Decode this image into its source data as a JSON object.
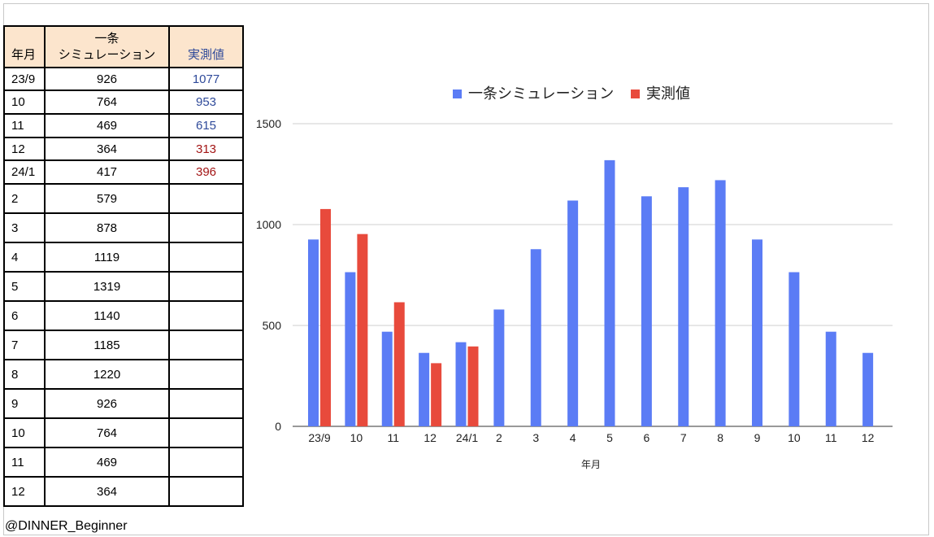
{
  "table": {
    "headers": {
      "month": "年月",
      "sim_line1": "一条",
      "sim_line2": "シミュレーション",
      "actual": "実測値"
    },
    "rows": [
      {
        "month": "23/9",
        "sim": "926",
        "actual": "1077",
        "actual_color": "#2f4a9a"
      },
      {
        "month": "10",
        "sim": "764",
        "actual": "953",
        "actual_color": "#2f4a9a"
      },
      {
        "month": "11",
        "sim": "469",
        "actual": "615",
        "actual_color": "#2f4a9a"
      },
      {
        "month": "12",
        "sim": "364",
        "actual": "313",
        "actual_color": "#a31515"
      },
      {
        "month": "24/1",
        "sim": "417",
        "actual": "396",
        "actual_color": "#a31515"
      },
      {
        "month": "2",
        "sim": "579",
        "actual": ""
      },
      {
        "month": "3",
        "sim": "878",
        "actual": ""
      },
      {
        "month": "4",
        "sim": "1119",
        "actual": ""
      },
      {
        "month": "5",
        "sim": "1319",
        "actual": ""
      },
      {
        "month": "6",
        "sim": "1140",
        "actual": ""
      },
      {
        "month": "7",
        "sim": "1185",
        "actual": ""
      },
      {
        "month": "8",
        "sim": "1220",
        "actual": ""
      },
      {
        "month": "9",
        "sim": "926",
        "actual": ""
      },
      {
        "month": "10",
        "sim": "764",
        "actual": ""
      },
      {
        "month": "11",
        "sim": "469",
        "actual": ""
      },
      {
        "month": "12",
        "sim": "364",
        "actual": ""
      }
    ]
  },
  "credit": "@DINNER_Beginner",
  "chart_data": {
    "type": "bar",
    "title": "",
    "xlabel": "年月",
    "ylabel": "",
    "ylim": [
      0,
      1500
    ],
    "yticks": [
      0,
      500,
      1000,
      1500
    ],
    "grid": true,
    "legend": "top",
    "categories": [
      "23/9",
      "10",
      "11",
      "12",
      "24/1",
      "2",
      "3",
      "4",
      "5",
      "6",
      "7",
      "8",
      "9",
      "10",
      "11",
      "12"
    ],
    "series": [
      {
        "name": "一条シミュレーション",
        "color": "#5b7cf5",
        "values": [
          926,
          764,
          469,
          364,
          417,
          579,
          878,
          1119,
          1319,
          1140,
          1185,
          1220,
          926,
          764,
          469,
          364
        ]
      },
      {
        "name": "実測値",
        "color": "#e84a3c",
        "values": [
          1077,
          953,
          615,
          313,
          396,
          null,
          null,
          null,
          null,
          null,
          null,
          null,
          null,
          null,
          null,
          null
        ]
      }
    ]
  }
}
